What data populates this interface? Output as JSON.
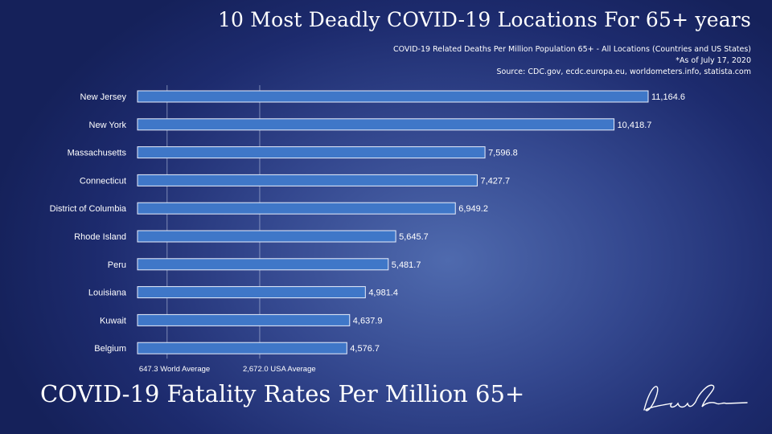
{
  "title": "10 Most Deadly COVID-19 Locations For 65+ years",
  "subtitle": "COVID-19 Related Deaths Per Million Population 65+ - All Locations (Countries and US States)",
  "as_of": "*As of July 17, 2020",
  "source": "Source: CDC.gov, ecdc.europa.eu, worldometers.info, statista.com",
  "footer_title": "COVID-19 Fatality Rates Per Million 65+",
  "signature_text": "Lauren Shirahata",
  "colors": {
    "bar_fill": "#3f77c8",
    "bar_stroke": "#e8eefc",
    "reference_line": "#b8c4e0",
    "text": "#ffffff"
  },
  "chart_data": {
    "type": "bar",
    "orientation": "horizontal",
    "categories": [
      "New Jersey",
      "New York",
      "Massachusetts",
      "Connecticut",
      "District of Columbia",
      "Rhode Island",
      "Peru",
      "Louisiana",
      "Kuwait",
      "Belgium"
    ],
    "values": [
      11164.6,
      10418.7,
      7596.8,
      7427.7,
      6949.2,
      5645.7,
      5481.7,
      4981.4,
      4637.9,
      4576.7
    ],
    "value_labels": [
      "11,164.6",
      "10,418.7",
      "7,596.8",
      "7,427.7",
      "6,949.2",
      "5,645.7",
      "5,481.7",
      "4,981.4",
      "4,637.9",
      "4,576.7"
    ],
    "xlim": [
      0,
      11164.6
    ],
    "grid": false,
    "reference_lines": [
      {
        "value": 647.3,
        "label": "647.3 World Average"
      },
      {
        "value": 2672.0,
        "label": "2,672.0 USA Average"
      }
    ]
  }
}
